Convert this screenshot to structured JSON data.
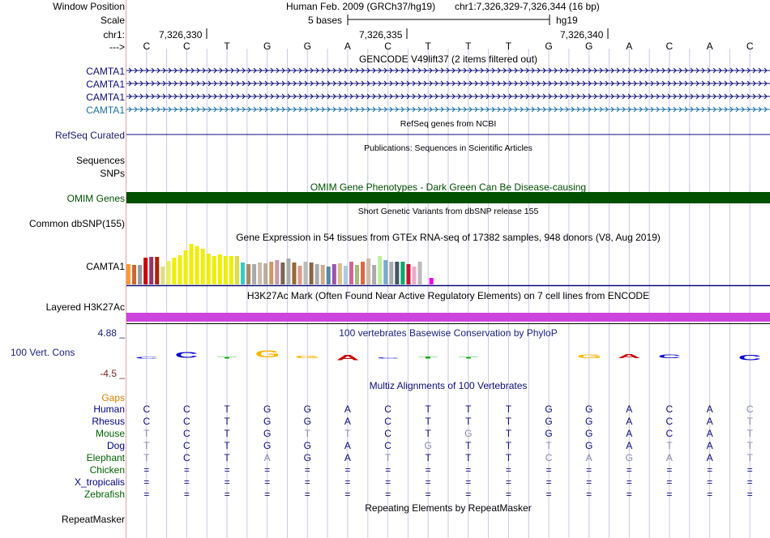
{
  "header": {
    "window_position_label": "Window Position",
    "scale_label": "Scale",
    "chrom_label": "chr1:",
    "strand_label": "--->",
    "assembly": "Human Feb. 2009 (GRCh37/hg19)",
    "position": "chr1:7,326,329-7,326,344 (16 bp)",
    "scale_text": "5 bases",
    "db": "hg19",
    "ticks": [
      "7,326,330",
      "7,326,335",
      "7,326,340"
    ]
  },
  "sequence": [
    "C",
    "C",
    "T",
    "G",
    "G",
    "A",
    "C",
    "T",
    "T",
    "T",
    "G",
    "G",
    "A",
    "C",
    "A",
    "C"
  ],
  "gencode": {
    "title": "GENCODE V49lift37 (2 items filtered out)",
    "items": [
      "CAMTA1",
      "CAMTA1",
      "CAMTA1",
      "CAMTA1"
    ],
    "colors": [
      "#0c0c78",
      "#0c0c78",
      "#0c0c78",
      "#1a6fa0"
    ]
  },
  "refseq": {
    "label": "RefSeq Curated",
    "title": "RefSeq genes from NCBI"
  },
  "publications": {
    "label": "Sequences",
    "title": "Publications: Sequences in Scientific Articles"
  },
  "snps": {
    "label": "SNPs"
  },
  "omim": {
    "label": "OMIM Genes",
    "title": "OMIM Gene Phenotypes - Dark Green Can Be Disease-causing",
    "color": "#005000"
  },
  "dbsnp": {
    "label": "Common dbSNP(155)",
    "title": "Short Genetic Variants from dbSNP release 155"
  },
  "gtex": {
    "label": "CAMTA1",
    "title": "Gene Expression in 54 tissues from GTEx RNA-seq of 17382 samples, 948 donors (V8, Aug 2019)",
    "values": [
      25,
      24,
      24,
      33,
      34,
      34,
      22,
      29,
      33,
      36,
      42,
      50,
      47,
      44,
      38,
      35,
      37,
      35,
      35,
      35,
      27,
      25,
      25,
      27,
      26,
      28,
      30,
      27,
      32,
      27,
      23,
      28,
      27,
      25,
      24,
      22,
      25,
      26,
      23,
      28,
      24,
      28,
      32,
      24,
      35,
      30,
      28,
      28,
      28,
      25,
      22,
      28,
      0,
      8
    ],
    "colors": [
      "#ff9933",
      "#cc6633",
      "#999999",
      "#cc0000",
      "#993366",
      "#aa2200",
      "#dddd88",
      "#eeee55",
      "#eeee00",
      "#eeee00",
      "#eeee00",
      "#eeee00",
      "#eeee00",
      "#eeee00",
      "#eeee00",
      "#eeee00",
      "#eeee00",
      "#eeee00",
      "#eeee00",
      "#dddd44",
      "#33cccc",
      "#aa8866",
      "#aaaaaa",
      "#ccbbaa",
      "#bbaa99",
      "#cc9966",
      "#cc99aa",
      "#776655",
      "#aaaaaa",
      "#996633",
      "#dd9988",
      "#bbbbbb",
      "#886644",
      "#aaaaaa",
      "#ccaa88",
      "#5588aa",
      "#9955aa",
      "#ddbb88",
      "#aaccdd",
      "#cc6699",
      "#aabb77",
      "#dd6644",
      "#ccbbaa",
      "#aaaaaa",
      "#bbee99",
      "#77aacc",
      "#aaaaaa",
      "#445566",
      "#00aa66",
      "#cc1133",
      "#eeaacc",
      "#bbbbbb",
      "#ffffff",
      "#ee00ee"
    ]
  },
  "h3k27ac": {
    "label": "Layered H3K27Ac",
    "title": "H3K27Ac Mark (Often Found Near Active Regulatory Elements) on 7 cell lines from ENCODE",
    "color": "#cc44dd"
  },
  "cons": {
    "label": "100 Vert. Cons",
    "max": "4.88 _",
    "min": "-4.5 _",
    "title": "100 vertebrates Basewise Conservation by PhyloP"
  },
  "multiz": {
    "title": "Multiz Alignments of 100 Vertebrates",
    "gaps_label": "Gaps",
    "species": [
      {
        "name": "Human",
        "bases": [
          "C",
          "C",
          "T",
          "G",
          "G",
          "A",
          "C",
          "T",
          "T",
          "T",
          "G",
          "G",
          "A",
          "C",
          "A",
          "C"
        ],
        "faint": [
          15
        ]
      },
      {
        "name": "Rhesus",
        "bases": [
          "C",
          "C",
          "T",
          "G",
          "G",
          "A",
          "C",
          "T",
          "T",
          "T",
          "G",
          "G",
          "A",
          "C",
          "A",
          "T"
        ],
        "faint": [
          15
        ]
      },
      {
        "name": "Mouse",
        "bases": [
          "T",
          "C",
          "T",
          "G",
          "T",
          "T",
          "C",
          "T",
          "G",
          "T",
          "G",
          "G",
          "A",
          "C",
          "A",
          "T"
        ],
        "faint": [
          0,
          4,
          5,
          8,
          15
        ]
      },
      {
        "name": "Dog",
        "bases": [
          "T",
          "C",
          "T",
          "G",
          "G",
          "A",
          "C",
          "G",
          "T",
          "T",
          "T",
          "G",
          "A",
          "T",
          "A",
          "T"
        ],
        "faint": [
          0,
          7,
          10,
          13,
          15
        ]
      },
      {
        "name": "Elephant",
        "bases": [
          "T",
          "C",
          "T",
          "A",
          "G",
          "A",
          "T",
          "T",
          "T",
          "T",
          "C",
          "A",
          "G",
          "A",
          "A",
          "T"
        ],
        "faint": [
          0,
          3,
          6,
          10,
          11,
          12,
          13,
          15
        ]
      },
      {
        "name": "Chicken",
        "bases": [
          "=",
          "=",
          "=",
          "=",
          "=",
          "=",
          "=",
          "=",
          "=",
          "=",
          "=",
          "=",
          "=",
          "=",
          "=",
          "="
        ],
        "faint": []
      },
      {
        "name": "X_tropicalis",
        "bases": [
          "=",
          "=",
          "=",
          "=",
          "=",
          "=",
          "=",
          "=",
          "=",
          "=",
          "=",
          "=",
          "=",
          "=",
          "=",
          "="
        ],
        "faint": []
      },
      {
        "name": "Zebrafish",
        "bases": [
          "=",
          "=",
          "=",
          "=",
          "=",
          "=",
          "=",
          "=",
          "=",
          "=",
          "=",
          "=",
          "=",
          "=",
          "=",
          "="
        ],
        "faint": []
      }
    ]
  },
  "repeatmasker": {
    "label": "RepeatMasker",
    "title": "Repeating Elements by RepeatMasker"
  },
  "colors": {
    "navy": "#0c0c78",
    "label_blue": "#000080",
    "species_green": "#006400",
    "gaps_orange": "#e08000",
    "cons_max": "#1a237e",
    "cons_min": "#7b1f1f",
    "grid": "#c8c8e8",
    "left_border": "#d8a8a8"
  }
}
